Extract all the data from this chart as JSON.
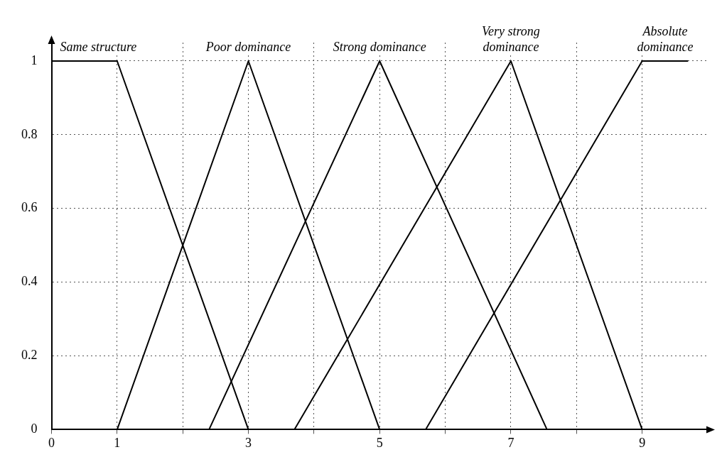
{
  "chart_data": {
    "type": "line",
    "xlim": [
      0,
      10
    ],
    "ylim": [
      0,
      1.05
    ],
    "xticks": [
      0,
      1,
      {
        "value": 2,
        "label": null
      },
      3,
      {
        "value": 4,
        "label": null
      },
      5,
      {
        "value": 6,
        "label": null
      },
      7,
      {
        "value": 8,
        "label": null
      },
      9
    ],
    "yticks": [
      0,
      0.2,
      0.4,
      0.6,
      0.8,
      1
    ],
    "grid": true,
    "marker": "none",
    "line_style": "solid",
    "series": [
      {
        "name": "Same structure",
        "color": "#000000",
        "x": [
          0,
          1,
          3
        ],
        "values": [
          1,
          1,
          0
        ]
      },
      {
        "name": "Poor dominance",
        "color": "#000000",
        "x": [
          1,
          3,
          5
        ],
        "values": [
          0,
          1,
          0
        ]
      },
      {
        "name": "Strong dominance",
        "color": "#000000",
        "x": [
          2.4,
          5,
          7.55
        ],
        "values": [
          0,
          1,
          0
        ]
      },
      {
        "name": "Very strong dominance",
        "color": "#000000",
        "x": [
          3.7,
          7,
          9
        ],
        "values": [
          0,
          1,
          0
        ]
      },
      {
        "name": "Absolute dominance",
        "color": "#000000",
        "x": [
          5.7,
          9,
          9.7
        ],
        "values": [
          0,
          1,
          1
        ]
      }
    ]
  }
}
